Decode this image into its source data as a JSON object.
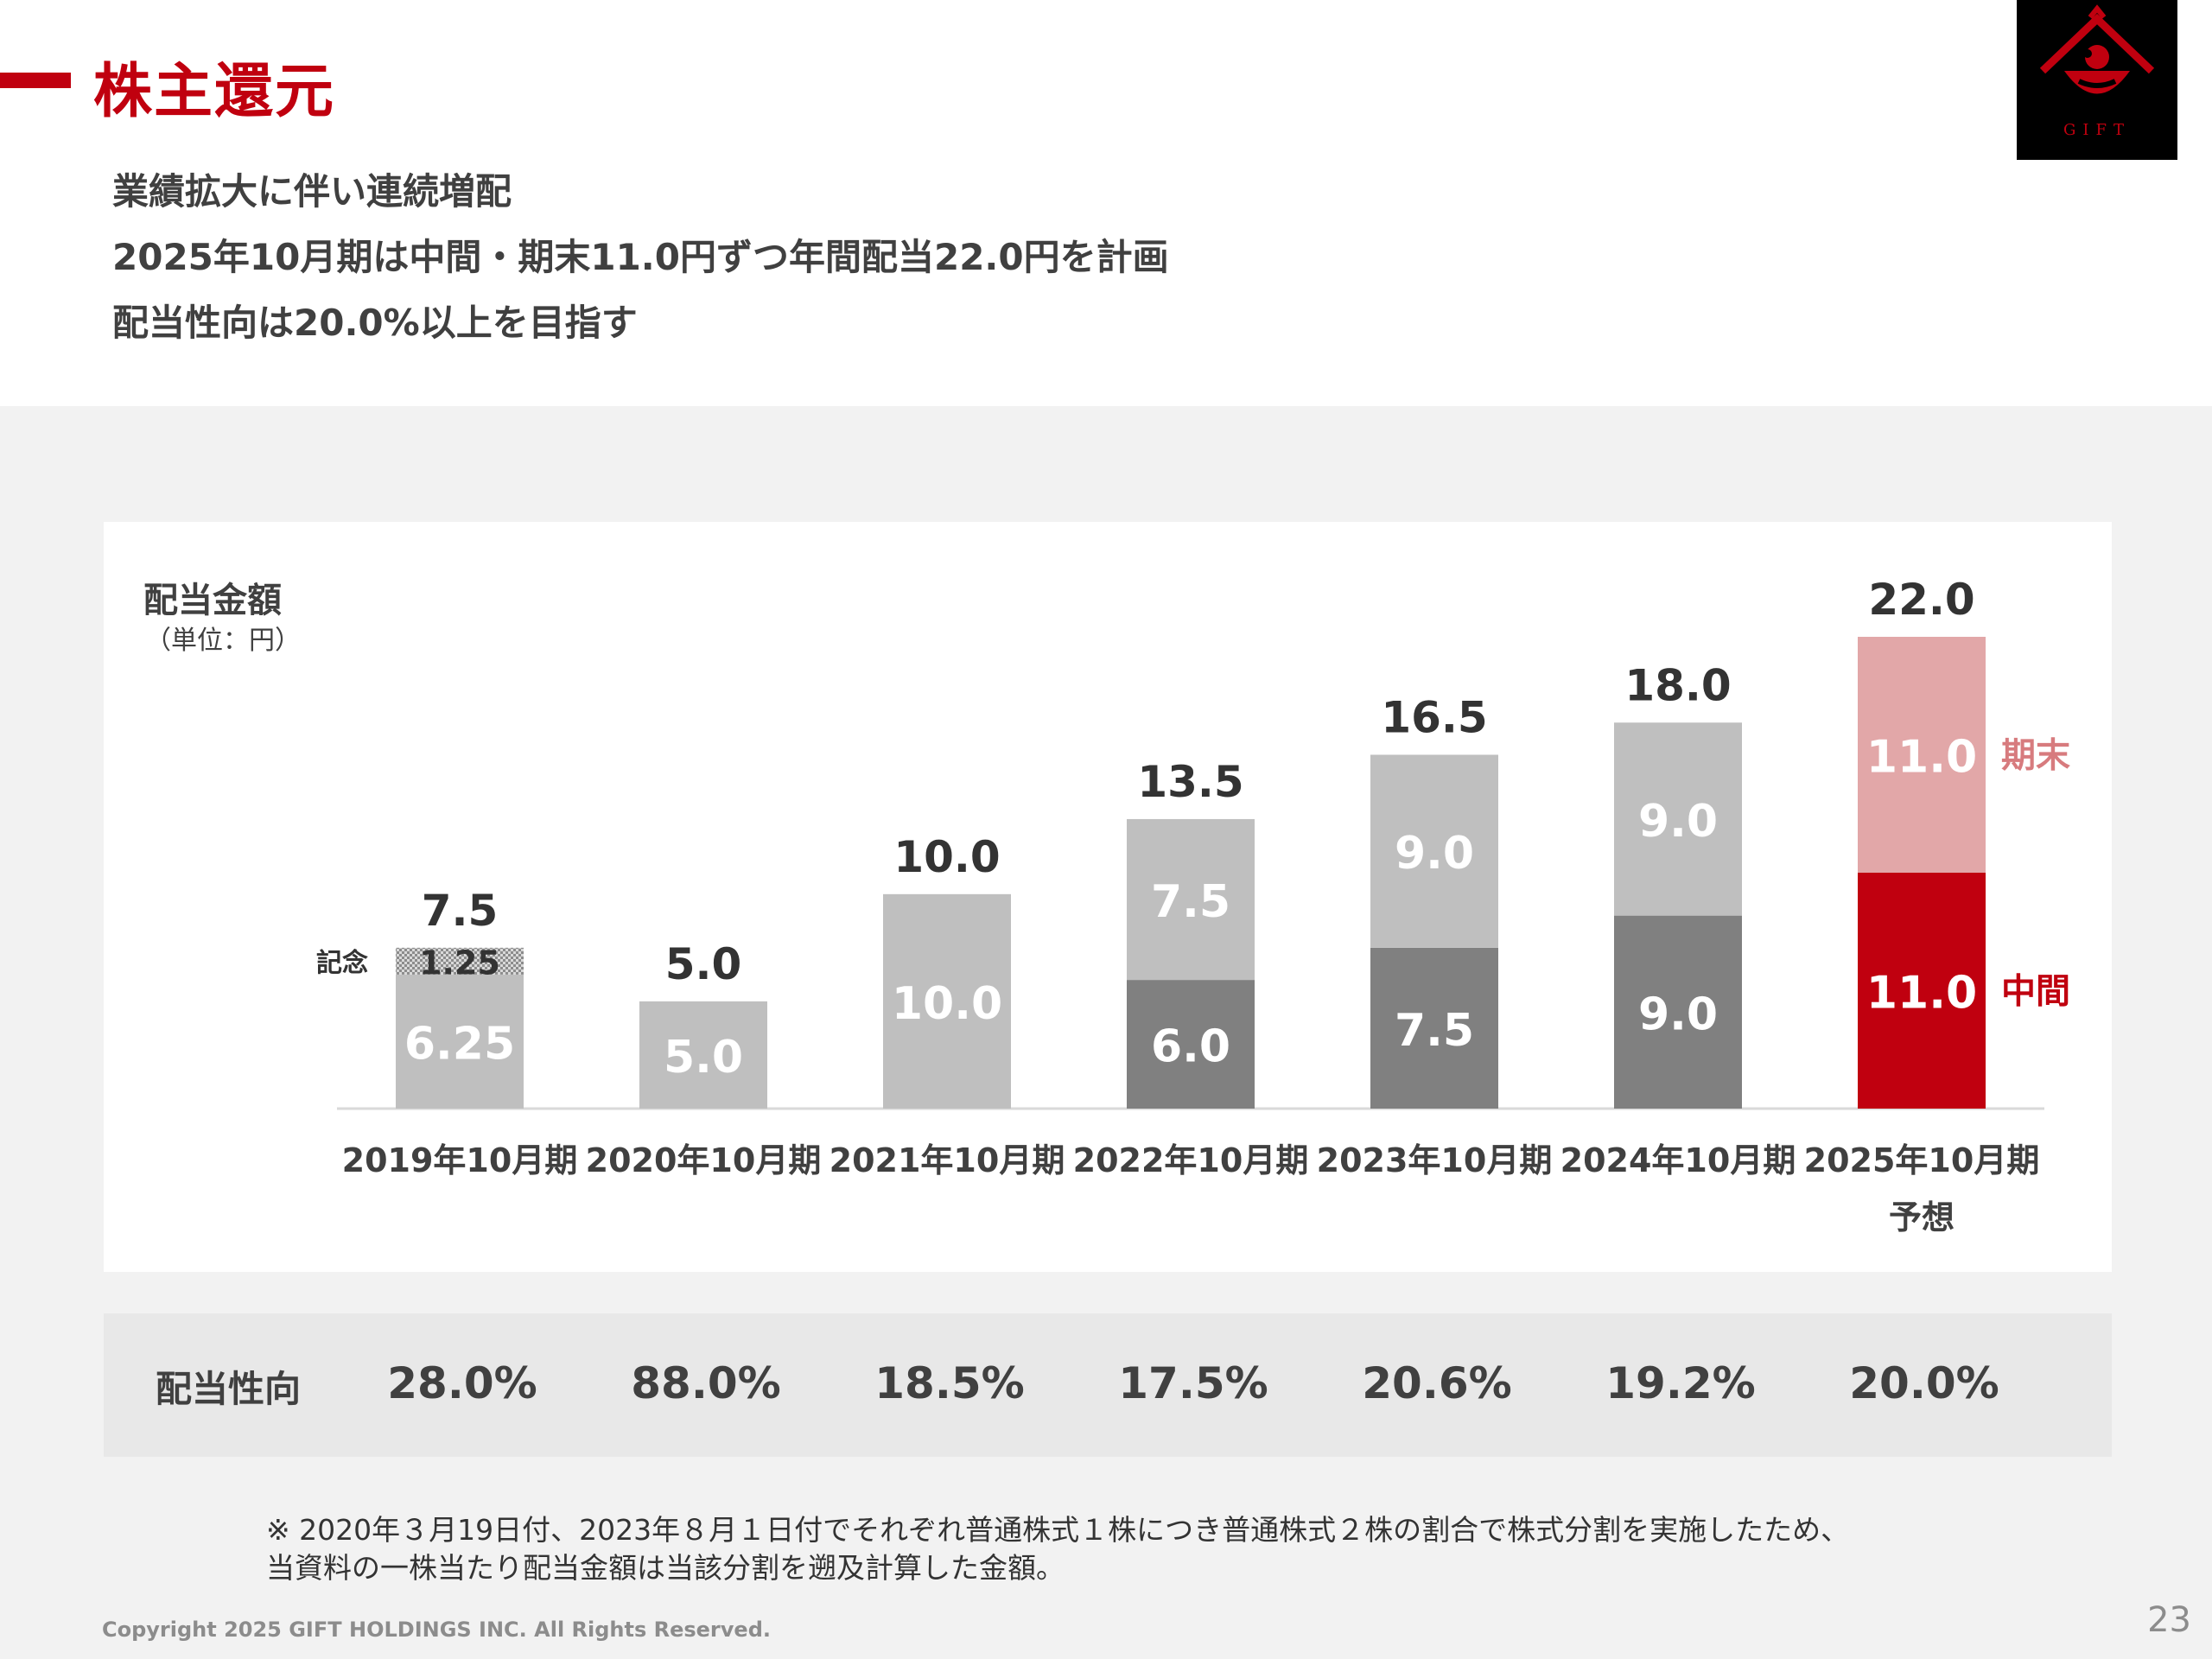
{
  "header": {
    "title": "株主還元",
    "logo_text": "GIFT"
  },
  "lead": [
    "業績拡大に伴い連続増配",
    "2025年10月期は中間・期末11.0円ずつ年間配当22.0円を計画",
    "配当性向は20.0%以上を目指す"
  ],
  "colors": {
    "brand_red": "#c0000f",
    "interim_gray": "#808080",
    "yearend_gray": "#bfbfbf",
    "yearend_pink": "#e2a7a8",
    "commemorative_pattern": "#a6a6a6"
  },
  "chart_data": {
    "type": "bar",
    "stacked": true,
    "title": "配当金額",
    "unit_label": "（単位：円）",
    "categories": [
      [
        "2019年10月期"
      ],
      [
        "2020年10月期"
      ],
      [
        "2021年10月期"
      ],
      [
        "2022年10月期"
      ],
      [
        "2023年10月期"
      ],
      [
        "2024年10月期"
      ],
      [
        "2025年10月期",
        "予想"
      ]
    ],
    "bars": [
      {
        "total": "7.5",
        "segments": [
          {
            "value": 6.25,
            "label": "6.25",
            "kind": "yearend"
          },
          {
            "value": 1.25,
            "label": "1.25",
            "kind": "commemorative",
            "side_label": "記念"
          }
        ]
      },
      {
        "total": "5.0",
        "segments": [
          {
            "value": 5.0,
            "label": "5.0",
            "kind": "yearend"
          }
        ]
      },
      {
        "total": "10.0",
        "segments": [
          {
            "value": 10.0,
            "label": "10.0",
            "kind": "yearend"
          }
        ]
      },
      {
        "total": "13.5",
        "segments": [
          {
            "value": 6.0,
            "label": "6.0",
            "kind": "interim"
          },
          {
            "value": 7.5,
            "label": "7.5",
            "kind": "yearend"
          }
        ]
      },
      {
        "total": "16.5",
        "segments": [
          {
            "value": 7.5,
            "label": "7.5",
            "kind": "interim"
          },
          {
            "value": 9.0,
            "label": "9.0",
            "kind": "yearend"
          }
        ]
      },
      {
        "total": "18.0",
        "segments": [
          {
            "value": 9.0,
            "label": "9.0",
            "kind": "interim"
          },
          {
            "value": 9.0,
            "label": "9.0",
            "kind": "yearend"
          }
        ]
      },
      {
        "total": "22.0",
        "segments": [
          {
            "value": 11.0,
            "label": "11.0",
            "kind": "forecast_interim",
            "side_label": "中間"
          },
          {
            "value": 11.0,
            "label": "11.0",
            "kind": "forecast_yearend",
            "side_label": "期末"
          }
        ]
      }
    ],
    "ylim": [
      0,
      22
    ],
    "grid": false,
    "legend": "none"
  },
  "payout": {
    "label": "配当性向",
    "values": [
      "28.0%",
      "88.0%",
      "18.5%",
      "17.5%",
      "20.6%",
      "19.2%",
      "20.0%"
    ]
  },
  "note": [
    "※ 2020年３月19日付、2023年８月１日付でそれぞれ普通株式１株につき普通株式２株の割合で株式分割を実施したため、",
    "当資料の一株当たり配当金額は当該分割を遡及計算した金額。"
  ],
  "footer": {
    "copyright": "Copyright 2025 GIFT HOLDINGS INC. All Rights Reserved.",
    "page_number": "23"
  }
}
